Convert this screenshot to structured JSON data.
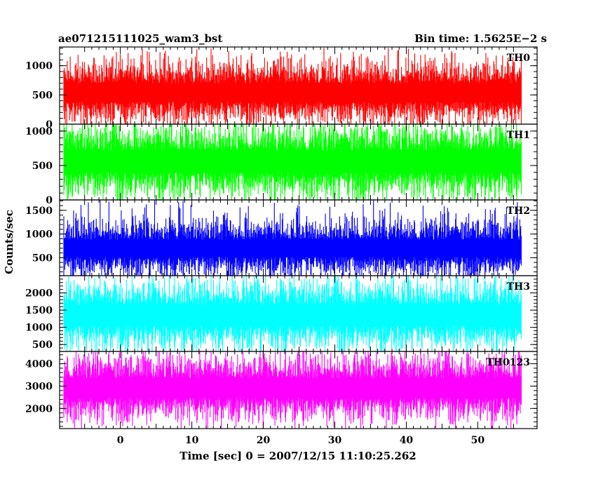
{
  "chart_data": {
    "type": "line",
    "title_left": "ae071215111025_wam3_bst",
    "title_right": "Bin time: 1.5625E−2 s",
    "xlabel": "Time [sec] 0 = 2007/12/15 11:10:25.262",
    "ylabel": "Counts/sec",
    "xlim": [
      -8.5,
      58.3
    ],
    "data_range": [
      -7.9,
      56.1
    ],
    "x_ticks": [
      0,
      10,
      20,
      30,
      40,
      50
    ],
    "grid": false,
    "panels": [
      {
        "name": "TH0",
        "color": "#ff0000",
        "ylim": [
          0,
          1320
        ],
        "y_ticks": [
          0,
          500,
          1000
        ],
        "mean": 540,
        "spread": 175,
        "max_peak": 1310
      },
      {
        "name": "TH1",
        "color": "#00ff00",
        "ylim": [
          0,
          1100
        ],
        "y_ticks": [
          0,
          500,
          1000
        ],
        "mean": 560,
        "spread": 175,
        "max_peak": 1100
      },
      {
        "name": "TH2",
        "color": "#0000ff",
        "ylim": [
          120,
          1720
        ],
        "y_ticks": [
          500,
          1000,
          1500
        ],
        "mean": 700,
        "spread": 200,
        "max_peak": 1720
      },
      {
        "name": "TH3",
        "color": "#00ffff",
        "ylim": [
          300,
          2500
        ],
        "y_ticks": [
          500,
          1000,
          1500,
          2000
        ],
        "mean": 1350,
        "spread": 330,
        "max_peak": 2500
      },
      {
        "name": "TH0123",
        "color": "#ff00ff",
        "ylim": [
          1100,
          4550
        ],
        "y_ticks": [
          2000,
          3000,
          4000
        ],
        "mean": 2920,
        "spread": 480,
        "max_peak": 4550
      }
    ]
  }
}
